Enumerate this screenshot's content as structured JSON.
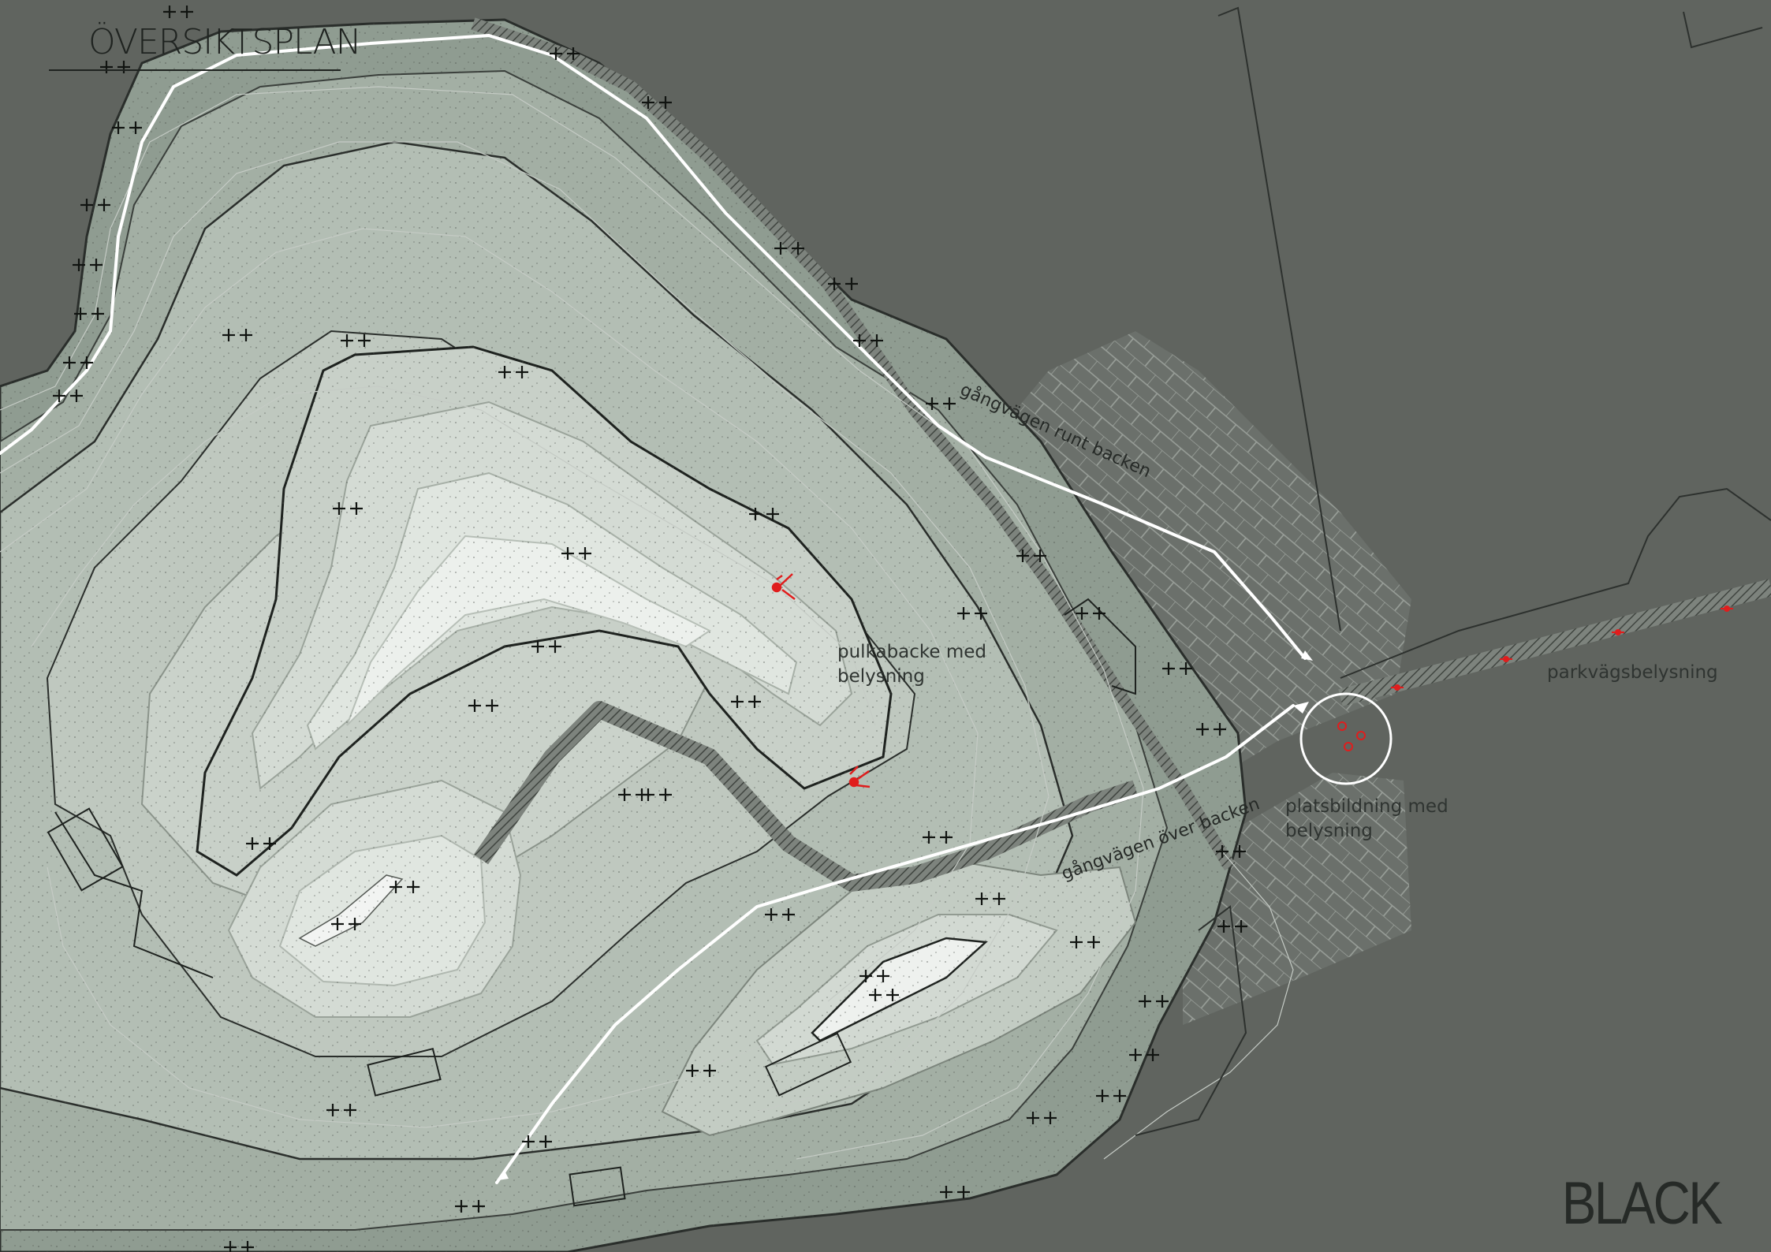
{
  "map": {
    "title": "ÖVERSIKTSPLAN",
    "brand": "BLACK",
    "labels": {
      "path_around": "gångvägen runt backen",
      "path_over": "gångvägen över backen",
      "sled_hill": "pulkabacke med belysning",
      "plaza": "platsbildning med belysning",
      "park_lighting": "parkvägsbelysning"
    },
    "colors": {
      "background": "#60645f",
      "band_outer": "#8f9c91",
      "band_mid": "#a9b5aa",
      "band_inner": "#c4cdc4",
      "band_peak": "#dfe5df",
      "accent_lamp": "#e01d1d",
      "path": "#ffffff"
    },
    "icons": [
      "tree-symbol-icon",
      "lamp-post-icon",
      "direction-arrow-icon"
    ]
  }
}
